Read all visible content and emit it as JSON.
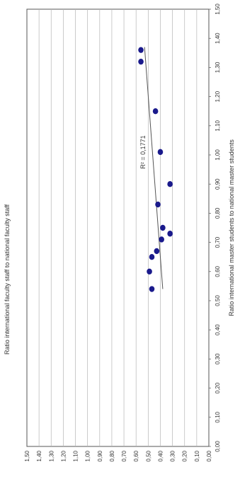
{
  "chart_data": {
    "type": "scatter",
    "orientation": "rotated-90-clockwise",
    "xlabel": "Ratio international master students  to national master students",
    "ylabel": "Ratio international faculty staff to national faculty staff",
    "xlim": [
      0.0,
      1.5
    ],
    "ylim": [
      0.0,
      1.5
    ],
    "x_ticks": [
      "0,00",
      "0,10",
      "0,20",
      "0,30",
      "0,40",
      "0,50",
      "0,60",
      "0,70",
      "0,80",
      "0,90",
      "1,00",
      "1,10",
      "1,20",
      "1,30",
      "1,40",
      "1,50"
    ],
    "y_ticks": [
      "0,00",
      "0,10",
      "0,20",
      "0,30",
      "0,40",
      "0,50",
      "0,60",
      "0,70",
      "0,80",
      "0,90",
      "1,00",
      "1,10",
      "1,20",
      "1,30",
      "1,40",
      "1,50"
    ],
    "grid": true,
    "points": [
      {
        "x": 0.54,
        "y": 0.47
      },
      {
        "x": 0.6,
        "y": 0.49
      },
      {
        "x": 0.65,
        "y": 0.47
      },
      {
        "x": 0.67,
        "y": 0.43
      },
      {
        "x": 0.71,
        "y": 0.39
      },
      {
        "x": 0.73,
        "y": 0.32
      },
      {
        "x": 0.75,
        "y": 0.38
      },
      {
        "x": 0.83,
        "y": 0.42
      },
      {
        "x": 0.9,
        "y": 0.32
      },
      {
        "x": 1.01,
        "y": 0.4
      },
      {
        "x": 1.15,
        "y": 0.44
      },
      {
        "x": 1.32,
        "y": 0.56
      },
      {
        "x": 1.36,
        "y": 0.56
      }
    ],
    "trendline": {
      "x1": 0.54,
      "y1": 0.38,
      "x2": 1.37,
      "y2": 0.53
    },
    "annotation": "R² = 0,1771",
    "point_color": "#1a1a8c",
    "line_color": "#555555",
    "grid_color": "#b5b5b5"
  }
}
